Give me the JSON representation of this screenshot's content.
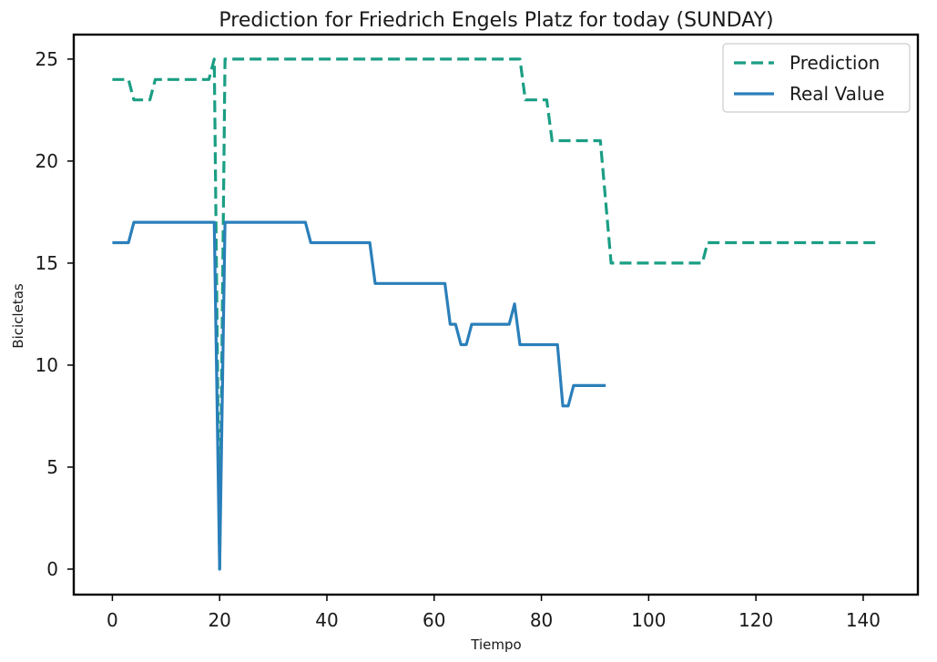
{
  "chart_data": {
    "type": "line",
    "title": "Prediction for Friedrich Engels Platz for today (SUNDAY)",
    "xlabel": "Tiempo",
    "ylabel": "Bicicletas",
    "xlim": [
      -7.2,
      150.2
    ],
    "ylim": [
      -1.25,
      26.2
    ],
    "x_ticks": [
      0,
      20,
      40,
      60,
      80,
      100,
      120,
      140
    ],
    "y_ticks": [
      0,
      5,
      10,
      15,
      20,
      25
    ],
    "grid": false,
    "legend_position": "top-right",
    "series": [
      {
        "name": "Prediction",
        "color": "#1a9e84",
        "style": "dashed",
        "x": [
          0,
          3,
          4,
          7,
          8,
          18,
          19,
          20,
          21,
          76,
          77,
          81,
          82,
          91,
          92,
          93,
          110,
          111,
          143
        ],
        "y": [
          24,
          24,
          23,
          23,
          24,
          24,
          25,
          0,
          25,
          25,
          23,
          23,
          21,
          21,
          18,
          15,
          15,
          16,
          16
        ]
      },
      {
        "name": "Real Value",
        "color": "#2a7fba",
        "style": "solid",
        "x": [
          0,
          3,
          4,
          19,
          20,
          21,
          36,
          37,
          48,
          49,
          62,
          63,
          64,
          65,
          66,
          67,
          74,
          75,
          76,
          83,
          84,
          85,
          86,
          92
        ],
        "y": [
          16,
          16,
          17,
          17,
          0,
          17,
          17,
          16,
          16,
          14,
          14,
          12,
          12,
          11,
          11,
          12,
          12,
          13,
          11,
          11,
          8,
          8,
          9,
          9
        ]
      }
    ]
  }
}
